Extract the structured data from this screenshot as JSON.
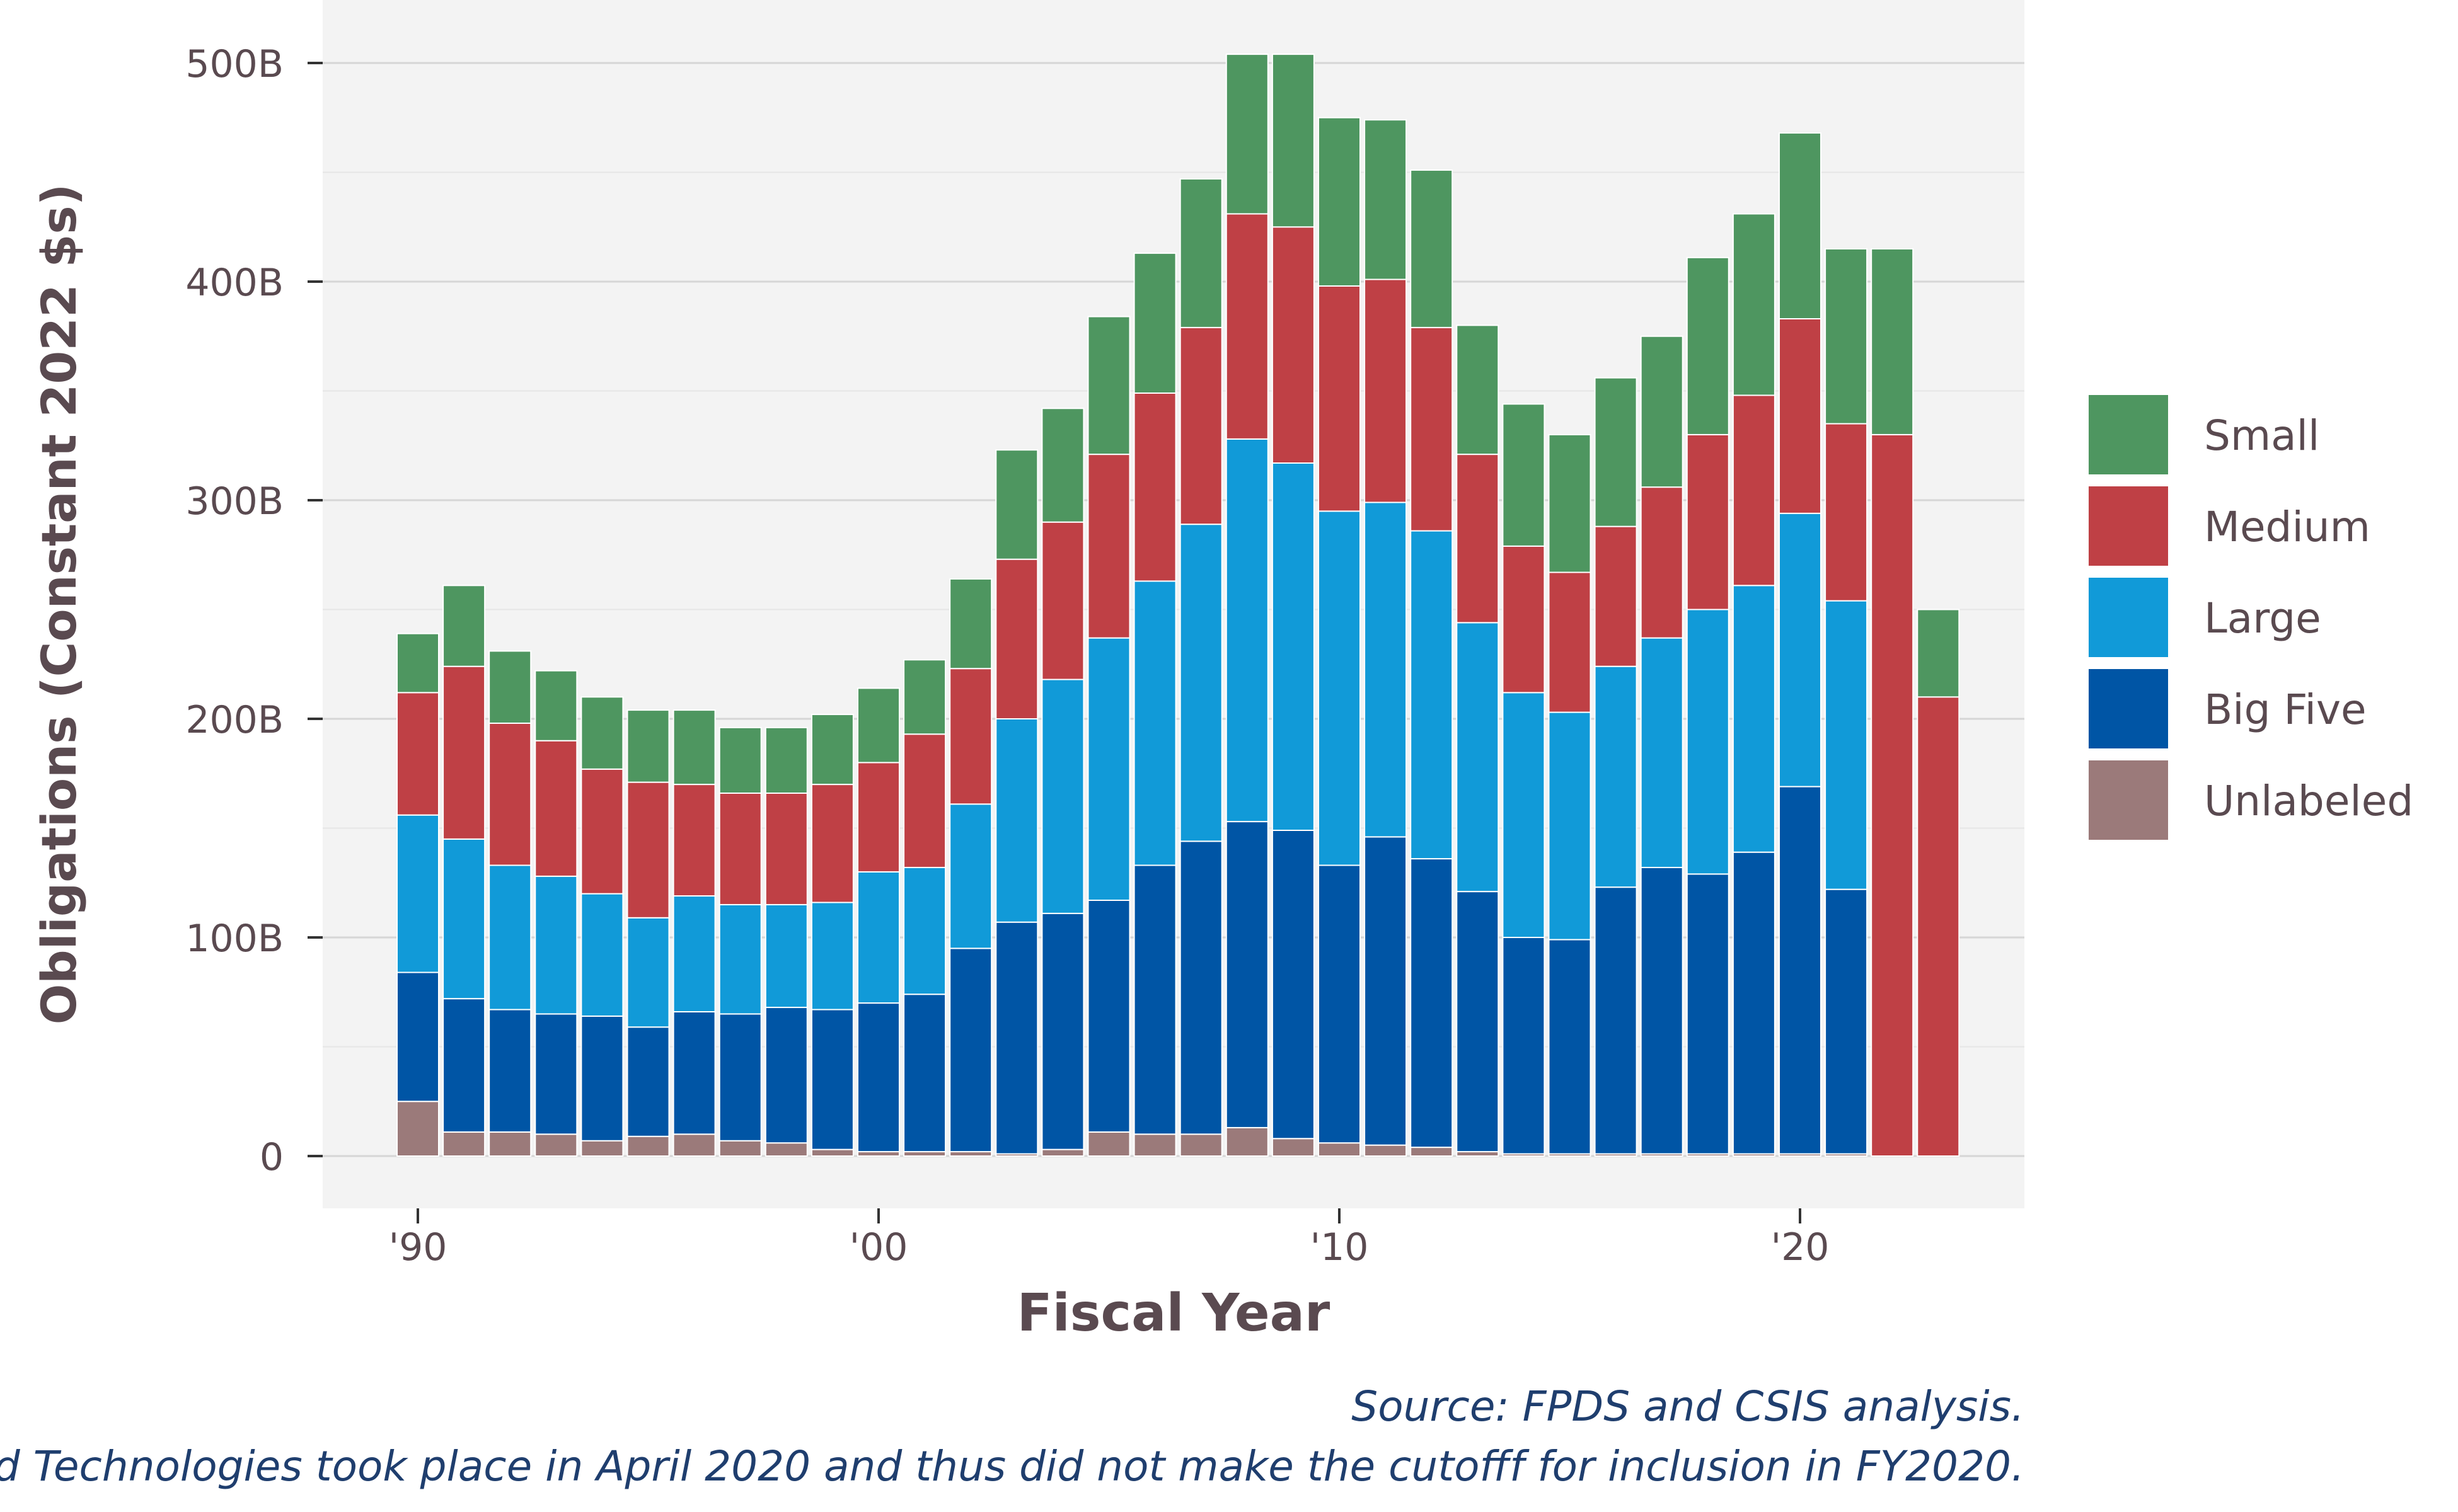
{
  "chart_data": {
    "type": "bar",
    "stacked": true,
    "xlabel": "Fiscal Year",
    "ylabel": "Obligations (Constant 2022 $s)",
    "ylim": [
      0,
      520
    ],
    "yticks": [
      {
        "value": 0,
        "label": "0"
      },
      {
        "value": 100,
        "label": "100B"
      },
      {
        "value": 200,
        "label": "200B"
      },
      {
        "value": 300,
        "label": "300B"
      },
      {
        "value": 400,
        "label": "400B"
      },
      {
        "value": 500,
        "label": "500B"
      }
    ],
    "xlim": [
      1988.2,
      2024.7
    ],
    "xticks": [
      {
        "value": 1990,
        "label": "'90"
      },
      {
        "value": 2000,
        "label": "'00"
      },
      {
        "value": 2010,
        "label": "'10"
      },
      {
        "value": 2020,
        "label": "'20"
      }
    ],
    "grid": true,
    "legend_position": "right",
    "categories": [
      1990,
      1991,
      1992,
      1993,
      1994,
      1995,
      1996,
      1997,
      1998,
      1999,
      2000,
      2001,
      2002,
      2003,
      2004,
      2005,
      2006,
      2007,
      2008,
      2009,
      2010,
      2011,
      2012,
      2013,
      2014,
      2015,
      2016,
      2017,
      2018,
      2019,
      2020,
      2021,
      2022,
      2023
    ],
    "series": [
      {
        "name": "Unlabeled",
        "color": "#9b7a7a",
        "values": [
          25,
          11,
          11,
          10,
          7,
          9,
          10,
          7,
          6,
          3,
          2,
          2,
          2,
          1,
          3,
          11,
          10,
          10,
          13,
          8,
          6,
          5,
          4,
          2,
          1,
          1,
          1,
          1,
          1,
          1,
          1,
          1,
          0,
          0
        ]
      },
      {
        "name": "Big Five",
        "color": "#0055a5",
        "values": [
          59,
          61,
          56,
          55,
          57,
          50,
          56,
          58,
          62,
          64,
          68,
          72,
          93,
          106,
          108,
          106,
          123,
          134,
          140,
          141,
          127,
          141,
          132,
          119,
          99,
          98,
          122,
          131,
          128,
          138,
          168,
          121,
          0,
          0
        ]
      },
      {
        "name": "Large",
        "color": "#119ad8",
        "values": [
          72,
          73,
          66,
          63,
          56,
          50,
          53,
          50,
          47,
          49,
          60,
          58,
          66,
          93,
          107,
          120,
          130,
          145,
          175,
          168,
          162,
          153,
          150,
          123,
          112,
          104,
          101,
          105,
          121,
          122,
          125,
          132,
          0,
          0
        ]
      },
      {
        "name": "Medium",
        "color": "#bf4045",
        "values": [
          56,
          79,
          65,
          62,
          57,
          62,
          51,
          51,
          51,
          54,
          50,
          61,
          62,
          73,
          72,
          84,
          86,
          90,
          103,
          108,
          103,
          102,
          93,
          77,
          67,
          64,
          64,
          69,
          80,
          87,
          89,
          81,
          330,
          210
        ]
      },
      {
        "name": "Small",
        "color": "#4e9660",
        "values": [
          27,
          37,
          33,
          32,
          33,
          33,
          34,
          30,
          30,
          32,
          34,
          34,
          41,
          50,
          52,
          63,
          64,
          68,
          73,
          79,
          77,
          73,
          72,
          59,
          65,
          63,
          68,
          69,
          81,
          83,
          85,
          80,
          85,
          40
        ]
      }
    ],
    "caption_lines": [
      "Source: FPDS and CSIS analysis.",
      "d Technologies took place in April 2020 and thus did not make the cutofff for inclusion in FY2020."
    ]
  }
}
